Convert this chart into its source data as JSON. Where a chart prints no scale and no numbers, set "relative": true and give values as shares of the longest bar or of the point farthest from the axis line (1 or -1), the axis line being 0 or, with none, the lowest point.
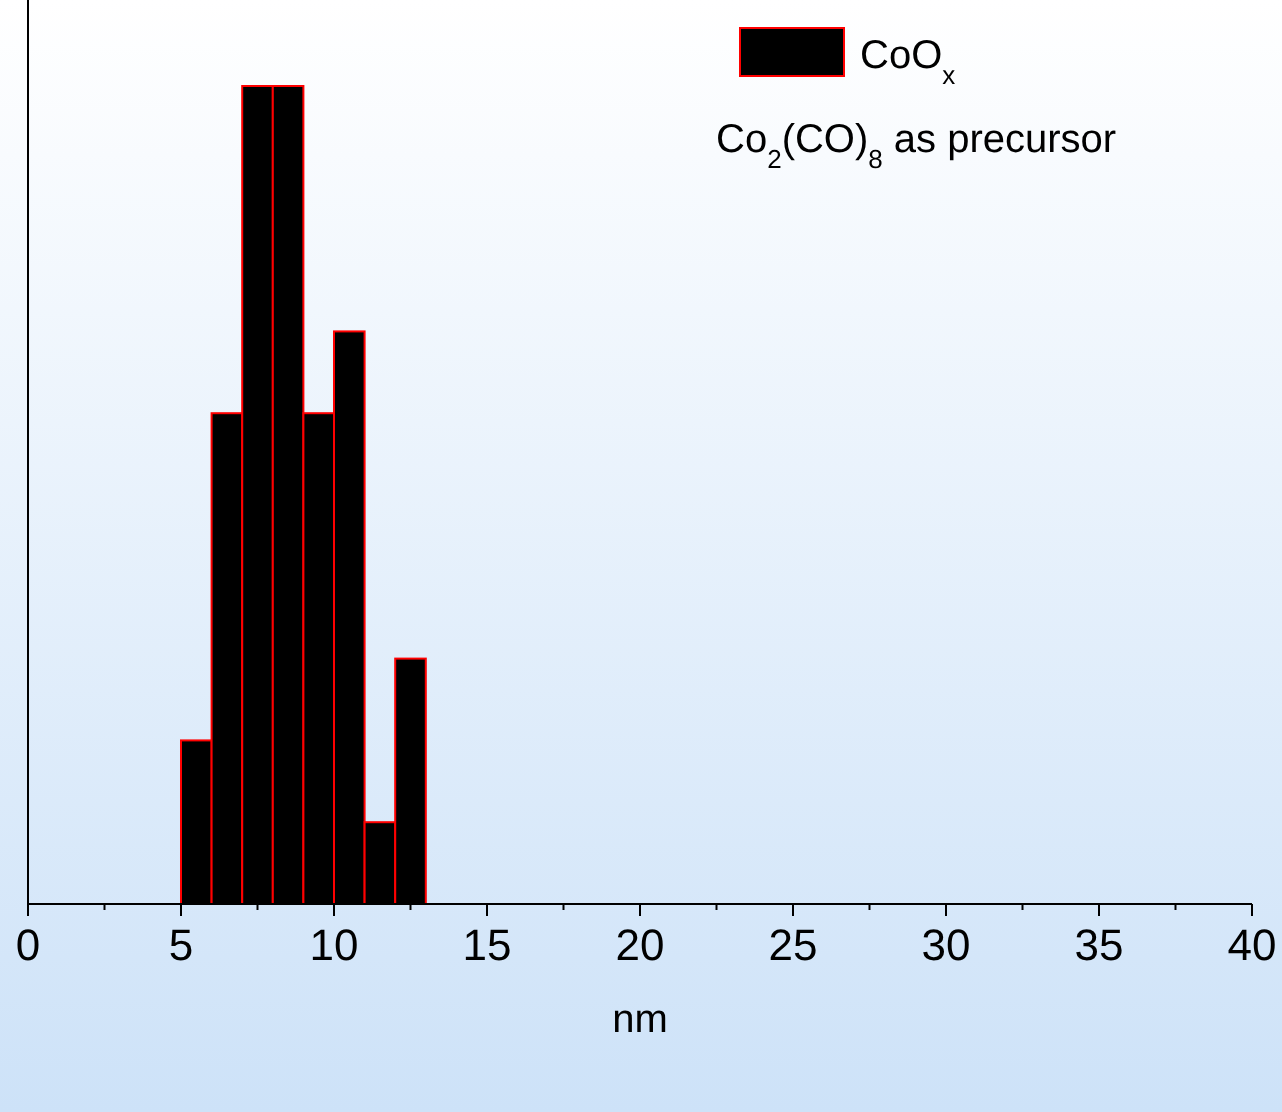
{
  "chart_data": {
    "type": "bar",
    "relative": true,
    "x": [
      5.5,
      6.5,
      7.5,
      8.5,
      9.5,
      10.5,
      11.5,
      12.5
    ],
    "series": [
      {
        "name": "CoO$_{x}$",
        "color": "#000000",
        "values": [
          0.2,
          0.6,
          1,
          1,
          0.6,
          0.7,
          0.1,
          0.3
        ]
      }
    ],
    "xlim": [
      0,
      40
    ],
    "xticks": [
      0,
      5,
      10,
      15,
      20,
      25,
      30,
      35,
      40
    ],
    "xlabel": "nm",
    "legend": "top right",
    "annotations": [
      "Co$_{2}$(CO)$_{8}$ as precursor"
    ]
  }
}
